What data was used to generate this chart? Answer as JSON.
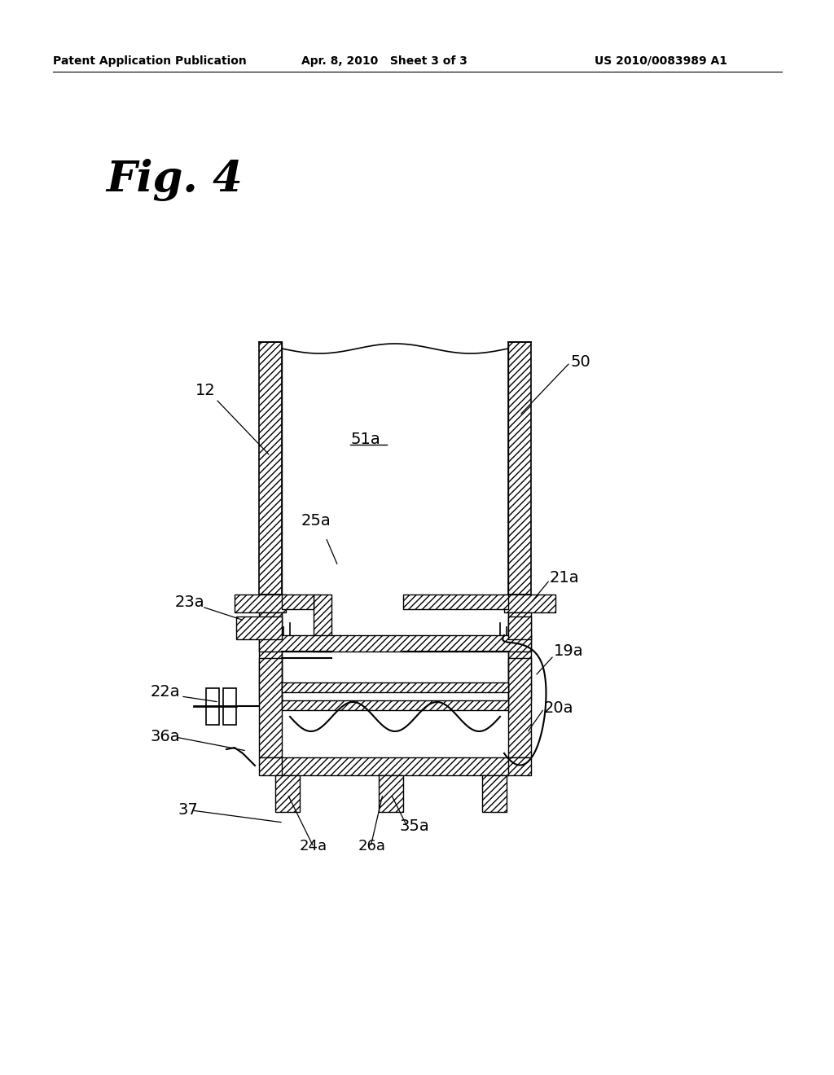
{
  "bg_color": "#ffffff",
  "header_left": "Patent Application Publication",
  "header_center": "Apr. 8, 2010   Sheet 3 of 3",
  "header_right": "US 2010/0083989 A1",
  "fig_label": "Fig. 4"
}
